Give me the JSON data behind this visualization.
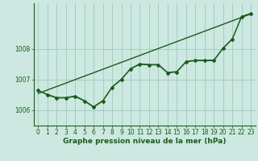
{
  "title": "Graphe pression niveau de la mer (hPa)",
  "background_color": "#cce8e0",
  "plot_bg_color": "#cce8e0",
  "grid_color": "#99ccbb",
  "line_color": "#1a5c1a",
  "xlim": [
    -0.5,
    23.5
  ],
  "ylim": [
    1005.5,
    1009.5
  ],
  "yticks": [
    1006,
    1007,
    1008
  ],
  "xticks": [
    0,
    1,
    2,
    3,
    4,
    5,
    6,
    7,
    8,
    9,
    10,
    11,
    12,
    13,
    14,
    15,
    16,
    17,
    18,
    19,
    20,
    21,
    22,
    23
  ],
  "series1_x": [
    0,
    1,
    2,
    3,
    4,
    5,
    6,
    7,
    8,
    9,
    10,
    11,
    12,
    13,
    14,
    15,
    16,
    17,
    18,
    19,
    20,
    21,
    22,
    23
  ],
  "series1_y": [
    1006.65,
    1006.5,
    1006.4,
    1006.4,
    1006.45,
    1006.3,
    1006.1,
    1006.3,
    1006.75,
    1007.0,
    1007.35,
    1007.5,
    1007.48,
    1007.48,
    1007.22,
    1007.25,
    1007.58,
    1007.62,
    1007.62,
    1007.62,
    1008.02,
    1008.32,
    1009.05,
    1009.15
  ],
  "series2_x": [
    0,
    1,
    2,
    3,
    4,
    5,
    6,
    7,
    8,
    9,
    10,
    11,
    12,
    13,
    14,
    15,
    16,
    17,
    18,
    19,
    20,
    21,
    22,
    23
  ],
  "series2_y": [
    1006.65,
    1006.52,
    1006.42,
    1006.42,
    1006.47,
    1006.32,
    1006.12,
    1006.32,
    1006.77,
    1007.02,
    1007.37,
    1007.52,
    1007.5,
    1007.5,
    1007.24,
    1007.27,
    1007.6,
    1007.64,
    1007.64,
    1007.64,
    1008.04,
    1008.34,
    1009.07,
    1009.17
  ],
  "trend_x": [
    0,
    23
  ],
  "trend_y": [
    1006.55,
    1009.15
  ],
  "title_fontsize": 6.5,
  "tick_fontsize": 5.5
}
